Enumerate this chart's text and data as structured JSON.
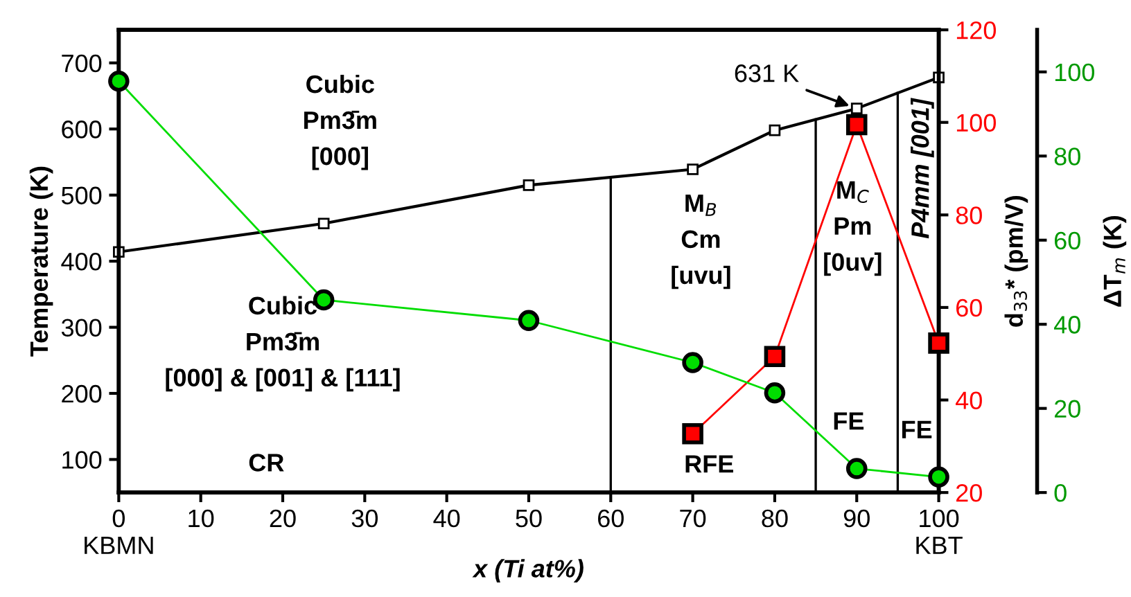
{
  "chart_data": {
    "type": "line",
    "xlabel": "x (Ti at%)",
    "ylabel": "Temperature (K)",
    "y2label": "d$_{33}$* (pm/V)",
    "y3label": "ΔT$_{m}$ (K)",
    "x": [
      0,
      25,
      50,
      70,
      80,
      90,
      100
    ],
    "xlim": [
      0,
      100
    ],
    "xticks": [
      {
        "value": 0,
        "label": "0\nKBMN"
      },
      10,
      20,
      30,
      40,
      50,
      60,
      70,
      80,
      90,
      {
        "value": 100,
        "label": "100\nKBT"
      }
    ],
    "ylim": [
      50,
      750
    ],
    "yticks": [
      100,
      200,
      300,
      400,
      500,
      600,
      700
    ],
    "y2lim": [
      20,
      120
    ],
    "y2ticks": [
      20,
      40,
      60,
      80,
      100,
      120
    ],
    "y3lim": [
      0,
      110
    ],
    "y3ticks": [
      0,
      20,
      40,
      60,
      80,
      100
    ],
    "grid": false,
    "series": [
      {
        "color": "#000000",
        "marker": "square",
        "values": [
          414,
          457,
          515,
          539,
          598,
          631,
          678
        ]
      },
      {
        "color": "#ff0000",
        "marker": "square",
        "axis": "y2",
        "x": [
          70,
          80,
          90,
          100
        ],
        "values": [
          32.7,
          49.4,
          99.5,
          52.3
        ]
      },
      {
        "color": "#00dd00",
        "marker": "circle",
        "axis": "y3",
        "values": [
          97.8,
          45.8,
          40.9,
          30.9,
          23.7,
          5.7,
          3.7
        ]
      }
    ],
    "ref_lines": [
      {
        "axis": "x",
        "value": 60,
        "color": "#000000"
      },
      {
        "axis": "x",
        "value": 85,
        "color": "#000000"
      },
      {
        "axis": "x",
        "value": 95,
        "color": "#000000"
      }
    ],
    "annotations": [
      "Cubic\nPm3̄m\n[000]",
      "Cubic\nPm3̄m\n[000] & [001] & [111]",
      "CR",
      "M$_{B}$\nCm\n[uvu]",
      "RFE",
      "M$_{C}$\nPm\n[0uv]",
      "FE",
      "P4mm [001]",
      "FE",
      {
        "text": "631 K",
        "x": 90,
        "y": 631
      }
    ]
  }
}
